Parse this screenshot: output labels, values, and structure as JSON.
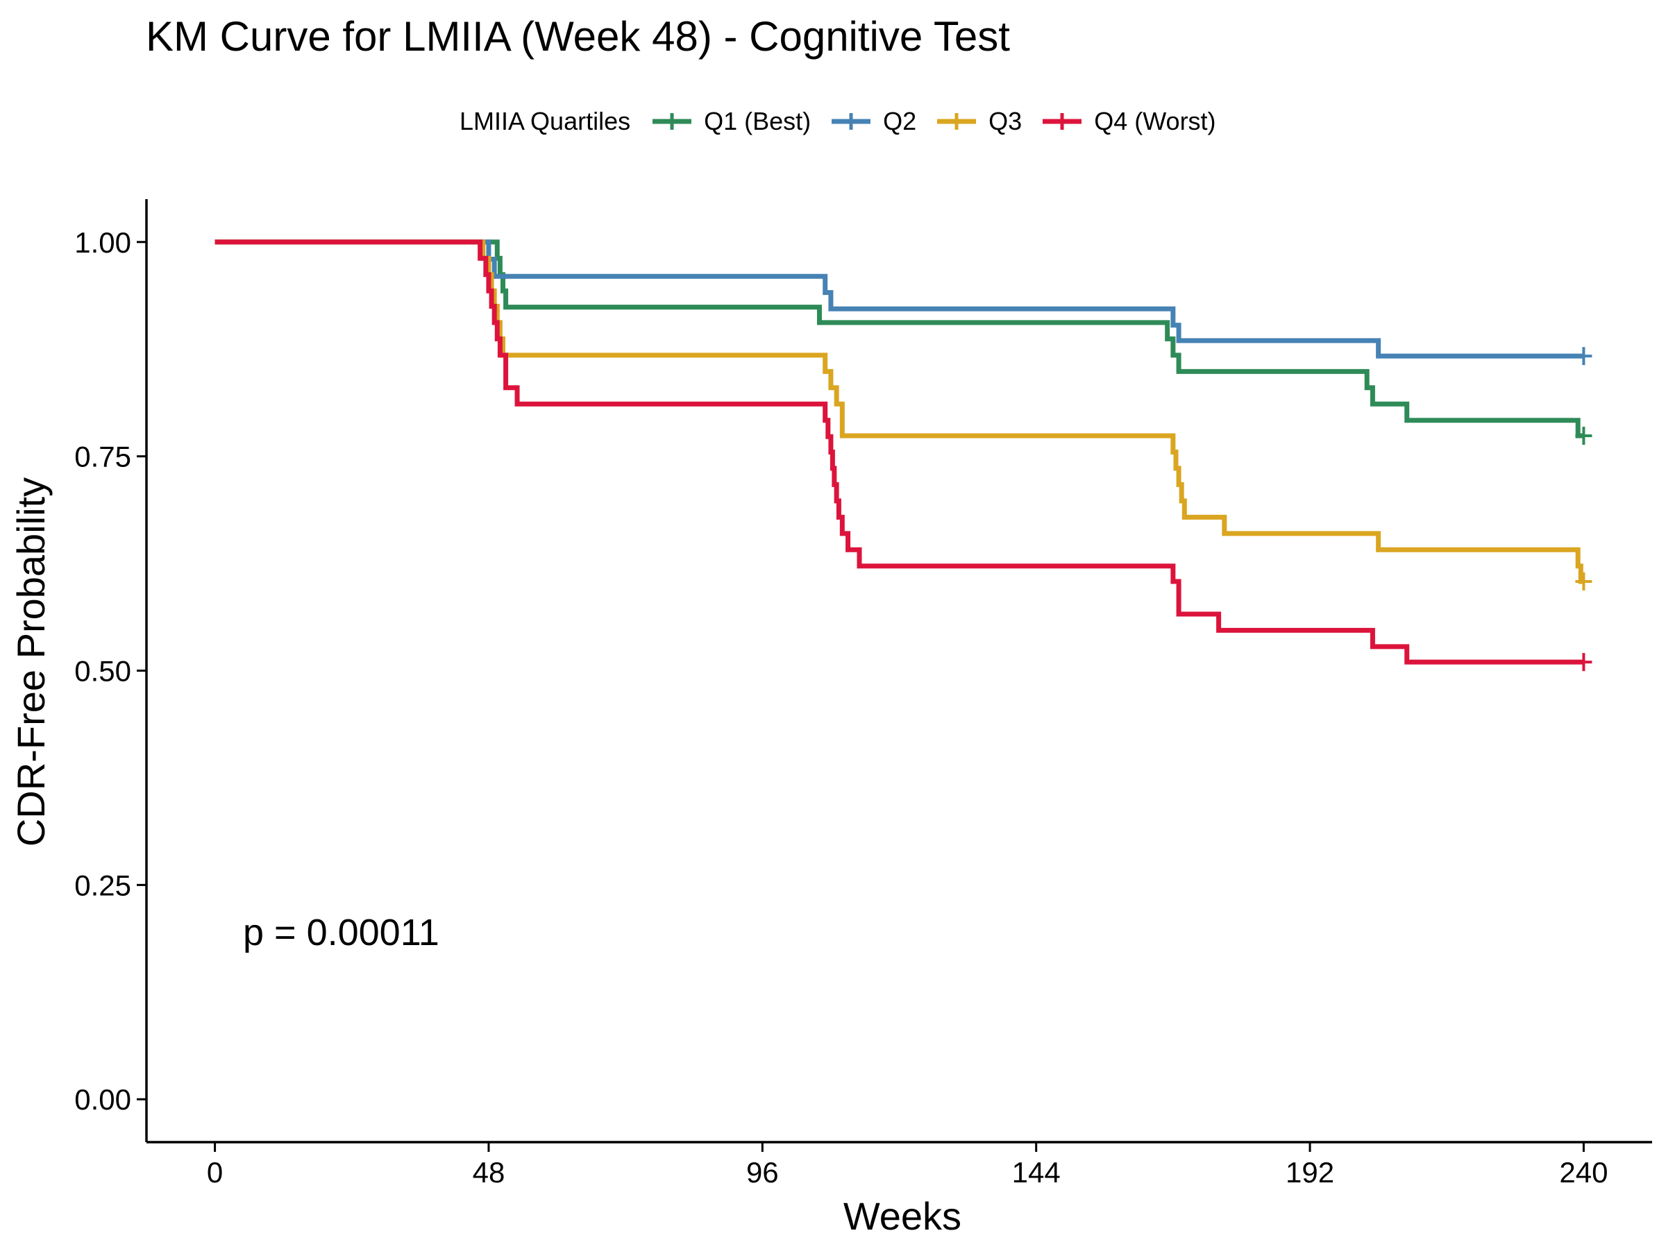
{
  "chart_data": {
    "type": "line",
    "subtype": "kaplan-meier step",
    "title": "KM Curve for LMIIA (Week 48) - Cognitive Test",
    "xlabel": "Weeks",
    "ylabel": "CDR-Free Probability",
    "xlim": [
      -12,
      252
    ],
    "ylim": [
      -0.05,
      1.05
    ],
    "xticks": [
      0,
      48,
      96,
      144,
      192,
      240
    ],
    "xtick_labels": [
      "0",
      "48",
      "96",
      "144",
      "192",
      "240"
    ],
    "yticks": [
      0,
      0.25,
      0.5,
      0.75,
      1.0
    ],
    "ytick_labels": [
      "0.00",
      "0.25",
      "0.50",
      "0.75",
      "1.00"
    ],
    "grid": false,
    "legend": {
      "title": "LMIIA Quartiles",
      "position": "top"
    },
    "annotation": "p = 0.00011",
    "series": [
      {
        "name": "Q1 (Best)",
        "color": "#2e8b57",
        "steps": [
          [
            0,
            1.0
          ],
          [
            49.5,
            0.981
          ],
          [
            50,
            0.962
          ],
          [
            50.5,
            0.943
          ],
          [
            51,
            0.924
          ],
          [
            106,
            0.906
          ],
          [
            167,
            0.887
          ],
          [
            168,
            0.868
          ],
          [
            169,
            0.849
          ],
          [
            202,
            0.83
          ],
          [
            203,
            0.811
          ],
          [
            209,
            0.792
          ],
          [
            239,
            0.774
          ]
        ],
        "end_x": 240,
        "censor": [
          [
            240,
            0.774
          ]
        ]
      },
      {
        "name": "Q2",
        "color": "#4682b4",
        "steps": [
          [
            0,
            1.0
          ],
          [
            48,
            0.98
          ],
          [
            49,
            0.96
          ],
          [
            107,
            0.941
          ],
          [
            108,
            0.922
          ],
          [
            168,
            0.903
          ],
          [
            169,
            0.885
          ],
          [
            204,
            0.867
          ]
        ],
        "end_x": 240,
        "censor": [
          [
            240,
            0.867
          ]
        ]
      },
      {
        "name": "Q3",
        "color": "#daa520",
        "steps": [
          [
            0,
            1.0
          ],
          [
            47,
            0.981
          ],
          [
            48,
            0.962
          ],
          [
            48.5,
            0.943
          ],
          [
            49,
            0.925
          ],
          [
            49.5,
            0.906
          ],
          [
            50,
            0.887
          ],
          [
            50.5,
            0.868
          ],
          [
            107,
            0.849
          ],
          [
            108,
            0.83
          ],
          [
            109,
            0.811
          ],
          [
            110,
            0.774
          ],
          [
            168,
            0.755
          ],
          [
            168.5,
            0.736
          ],
          [
            169,
            0.717
          ],
          [
            169.5,
            0.698
          ],
          [
            170,
            0.679
          ],
          [
            177,
            0.66
          ],
          [
            204,
            0.641
          ],
          [
            239,
            0.622
          ],
          [
            239.5,
            0.604
          ]
        ],
        "end_x": 240,
        "censor": [
          [
            240,
            0.604
          ]
        ]
      },
      {
        "name": "Q4 (Worst)",
        "color": "#dc143c",
        "steps": [
          [
            0,
            1.0
          ],
          [
            46.5,
            0.981
          ],
          [
            47.5,
            0.962
          ],
          [
            48,
            0.943
          ],
          [
            48.5,
            0.925
          ],
          [
            49,
            0.906
          ],
          [
            49.5,
            0.887
          ],
          [
            50,
            0.868
          ],
          [
            51,
            0.83
          ],
          [
            51.5,
            0.83
          ],
          [
            53,
            0.811
          ],
          [
            107,
            0.792
          ],
          [
            107.5,
            0.773
          ],
          [
            108,
            0.755
          ],
          [
            108.3,
            0.736
          ],
          [
            108.6,
            0.717
          ],
          [
            109,
            0.698
          ],
          [
            109.4,
            0.679
          ],
          [
            110,
            0.66
          ],
          [
            111,
            0.641
          ],
          [
            113,
            0.622
          ],
          [
            168,
            0.604
          ],
          [
            169,
            0.566
          ],
          [
            176,
            0.547
          ],
          [
            203,
            0.528
          ],
          [
            209,
            0.51
          ]
        ],
        "end_x": 240,
        "censor": [
          [
            240,
            0.51
          ]
        ]
      }
    ]
  }
}
